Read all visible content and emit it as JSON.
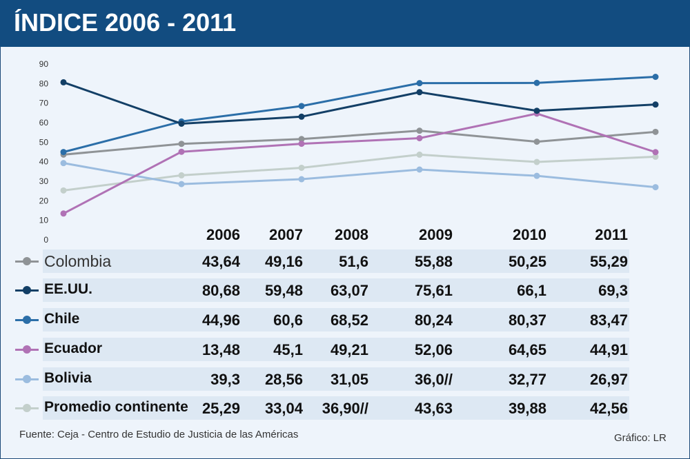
{
  "title": "ÍNDICE 2006 - 2011",
  "source": "Fuente: Ceja - Centro de Estudio de Justicia de las Américas",
  "credit": "Gráfico: LR",
  "chart_data": {
    "type": "line",
    "title": "ÍNDICE 2006 - 2011",
    "x": [
      "2006",
      "2007",
      "2008",
      "2009",
      "2010",
      "2011"
    ],
    "ylim": [
      0,
      90
    ],
    "yticks": [
      0,
      10,
      20,
      30,
      40,
      50,
      60,
      70,
      80,
      90
    ],
    "grid": false,
    "series": [
      {
        "name": "Colombia",
        "color": "#8f9396",
        "values": [
          43.64,
          49.16,
          51.6,
          55.88,
          50.25,
          55.29
        ],
        "labels": [
          "43,64",
          "49,16",
          "51,6",
          "55,88",
          "50,25",
          "55,29"
        ]
      },
      {
        "name": "EE.UU.",
        "color": "#133f66",
        "values": [
          80.68,
          59.48,
          63.07,
          75.61,
          66.1,
          69.3
        ],
        "labels": [
          "80,68",
          "59,48",
          "63,07",
          "75,61",
          "66,1",
          "69,3"
        ]
      },
      {
        "name": "Chile",
        "color": "#2b6ea8",
        "values": [
          44.96,
          60.6,
          68.52,
          80.24,
          80.37,
          83.47
        ],
        "labels": [
          "44,96",
          "60,6",
          "68,52",
          "80,24",
          "80,37",
          "83,47"
        ]
      },
      {
        "name": "Ecuador",
        "color": "#b072b5",
        "values": [
          13.48,
          45.1,
          49.21,
          52.06,
          64.65,
          44.91
        ],
        "labels": [
          "13,48",
          "45,1",
          "49,21",
          "52,06",
          "64,65",
          "44,91"
        ]
      },
      {
        "name": "Bolivia",
        "color": "#9bbcdf",
        "values": [
          39.3,
          28.56,
          31.05,
          36.0,
          32.77,
          26.97
        ],
        "labels": [
          "39,3",
          "28,56",
          "31,05",
          "36,0//",
          "32,77",
          "26,97"
        ]
      },
      {
        "name": "Promedio continente",
        "color": "#c3cfcb",
        "values": [
          25.29,
          33.04,
          36.9,
          43.63,
          39.88,
          42.56
        ],
        "labels": [
          "25,29",
          "33,04",
          "36,90//",
          "43,63",
          "39,88",
          "42,56"
        ]
      }
    ]
  }
}
